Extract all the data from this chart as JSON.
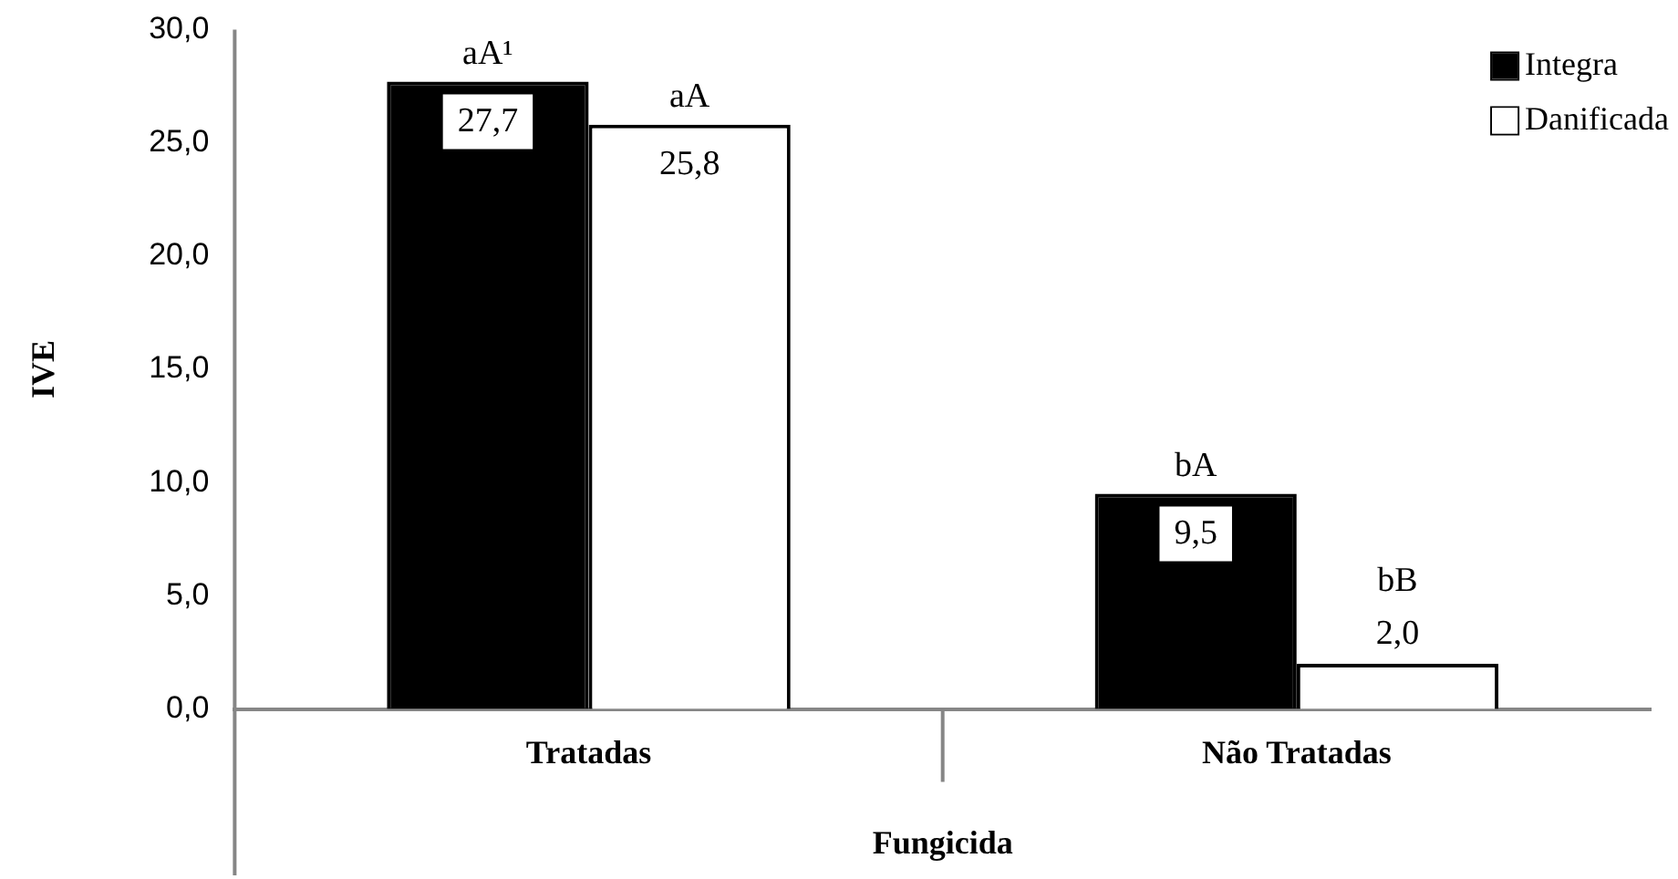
{
  "chart_data": {
    "type": "bar",
    "xlabel": "Fungicida",
    "ylabel": "IVE",
    "categories": [
      "Tratadas",
      "Não Tratadas"
    ],
    "series": [
      {
        "name": "Integra",
        "color": "#000000",
        "values": [
          27.7,
          9.5
        ],
        "value_labels": [
          "27,7",
          "9,5"
        ]
      },
      {
        "name": "Danificada",
        "color": "#ffffff",
        "values": [
          25.8,
          2.0
        ],
        "value_labels": [
          "25,8",
          "2,0"
        ]
      }
    ],
    "ylim": [
      0,
      30
    ],
    "yticks": [
      {
        "value": 0,
        "label": "0,0"
      },
      {
        "value": 5,
        "label": "5,0"
      },
      {
        "value": 10,
        "label": "10,0"
      },
      {
        "value": 15,
        "label": "15,0"
      },
      {
        "value": 20,
        "label": "20,0"
      },
      {
        "value": 25,
        "label": "25,0"
      },
      {
        "value": 30,
        "label": "30,0"
      }
    ],
    "annotations": [
      {
        "text": "aA¹",
        "x": "Tratadas",
        "y": 27.7
      },
      {
        "text": "aA",
        "x": "Tratadas",
        "y": 25.8
      },
      {
        "text": "bA",
        "x": "Não Tratadas",
        "y": 9.5
      },
      {
        "text": "bB",
        "x": "Não Tratadas",
        "y": 2.0
      }
    ],
    "grid": false,
    "legend": "top right"
  }
}
